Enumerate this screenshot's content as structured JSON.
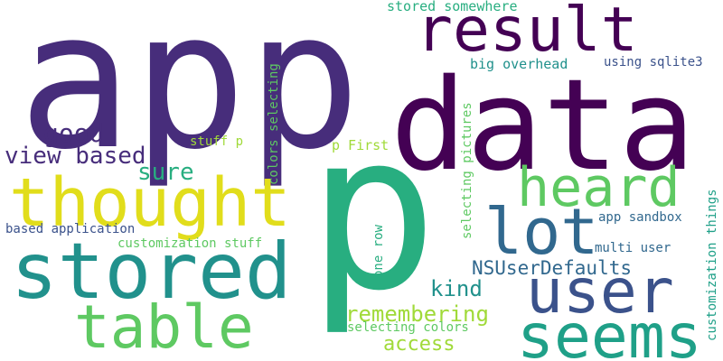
{
  "palette": {
    "indigo": "#472d7b",
    "purple": "#440154",
    "slate": "#3b528b",
    "blue": "#31688e",
    "teal": "#21918c",
    "aqua": "#1fa088",
    "green": "#28ae80",
    "lime": "#5ec962",
    "yellowgreen": "#a0da39",
    "yellow": "#e1dd1b"
  },
  "words": {
    "app": "app",
    "data": "data",
    "p": "p",
    "result": "result",
    "thought": "thought",
    "stored": "stored",
    "user": "user",
    "table": "table",
    "seems": "seems",
    "heard": "heard",
    "lot": "lot",
    "good": "good",
    "view_based": "view based",
    "sure": "sure",
    "stored_somewhere": "stored somewhere",
    "big_overhead": "big overhead",
    "using_sqlite3": "using sqlite3",
    "colors_selecting": "colors selecting",
    "stuff_p": "stuff p",
    "p_first": "p First",
    "selecting_pictures": "selecting pictures",
    "customization_things": "customization things",
    "app_sandbox": "app sandbox",
    "based_application": "based application",
    "customization_stuff": "customization stuff",
    "one_row": "one row",
    "multi_user": "multi user",
    "nsuserdefaults": "NSUserDefaults",
    "kind": "kind",
    "remembering": "remembering",
    "selecting_colors": "selecting colors",
    "access": "access"
  }
}
